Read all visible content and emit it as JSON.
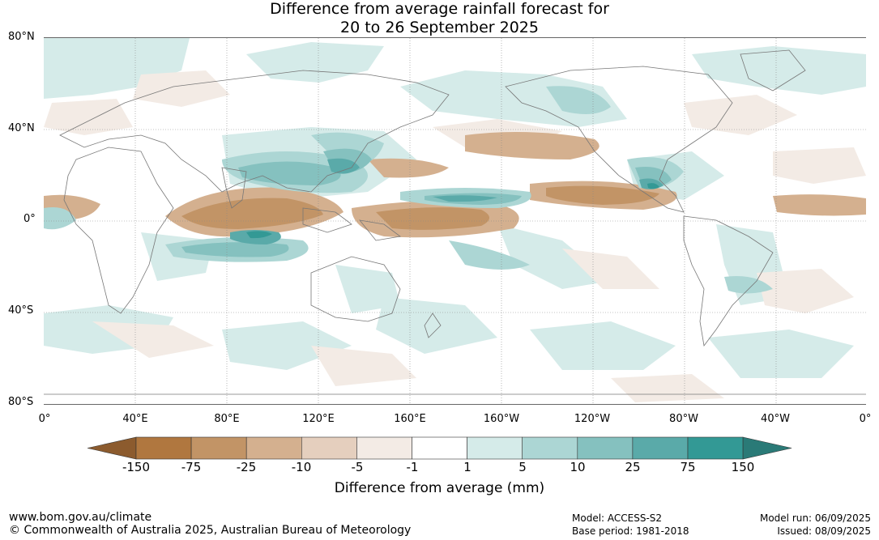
{
  "title_line1": "Difference from average rainfall forecast for",
  "title_line2": "20 to 26 September 2025",
  "map": {
    "latitude_labels": [
      "80°N",
      "40°N",
      "0°",
      "40°S",
      "80°S"
    ],
    "longitude_labels": [
      "0°",
      "40°E",
      "80°E",
      "120°E",
      "160°E",
      "160°W",
      "120°W",
      "80°W",
      "40°W",
      "0°"
    ],
    "grid": true
  },
  "legend": {
    "label": "Difference from average (mm)",
    "ticks": [
      "-150",
      "-75",
      "-25",
      "-10",
      "-5",
      "-1",
      "1",
      "5",
      "10",
      "25",
      "75",
      "150"
    ],
    "colors": [
      "#8c5b2e",
      "#b0773f",
      "#c29466",
      "#d4b08f",
      "#e5cfbe",
      "#f3ebe5",
      "#ffffff",
      "#d5ebe9",
      "#acd6d4",
      "#85c1bf",
      "#5aaaa9",
      "#339995",
      "#2a7a77"
    ]
  },
  "footer": {
    "website": "www.bom.gov.au/climate",
    "copyright": "© Commonwealth of Australia 2025, Australian Bureau of Meteorology",
    "model": "Model: ACCESS-S2",
    "base_period": "Base period: 1981-2018",
    "model_run": "Model run: 06/09/2025",
    "issued": "Issued: 08/09/2025"
  }
}
